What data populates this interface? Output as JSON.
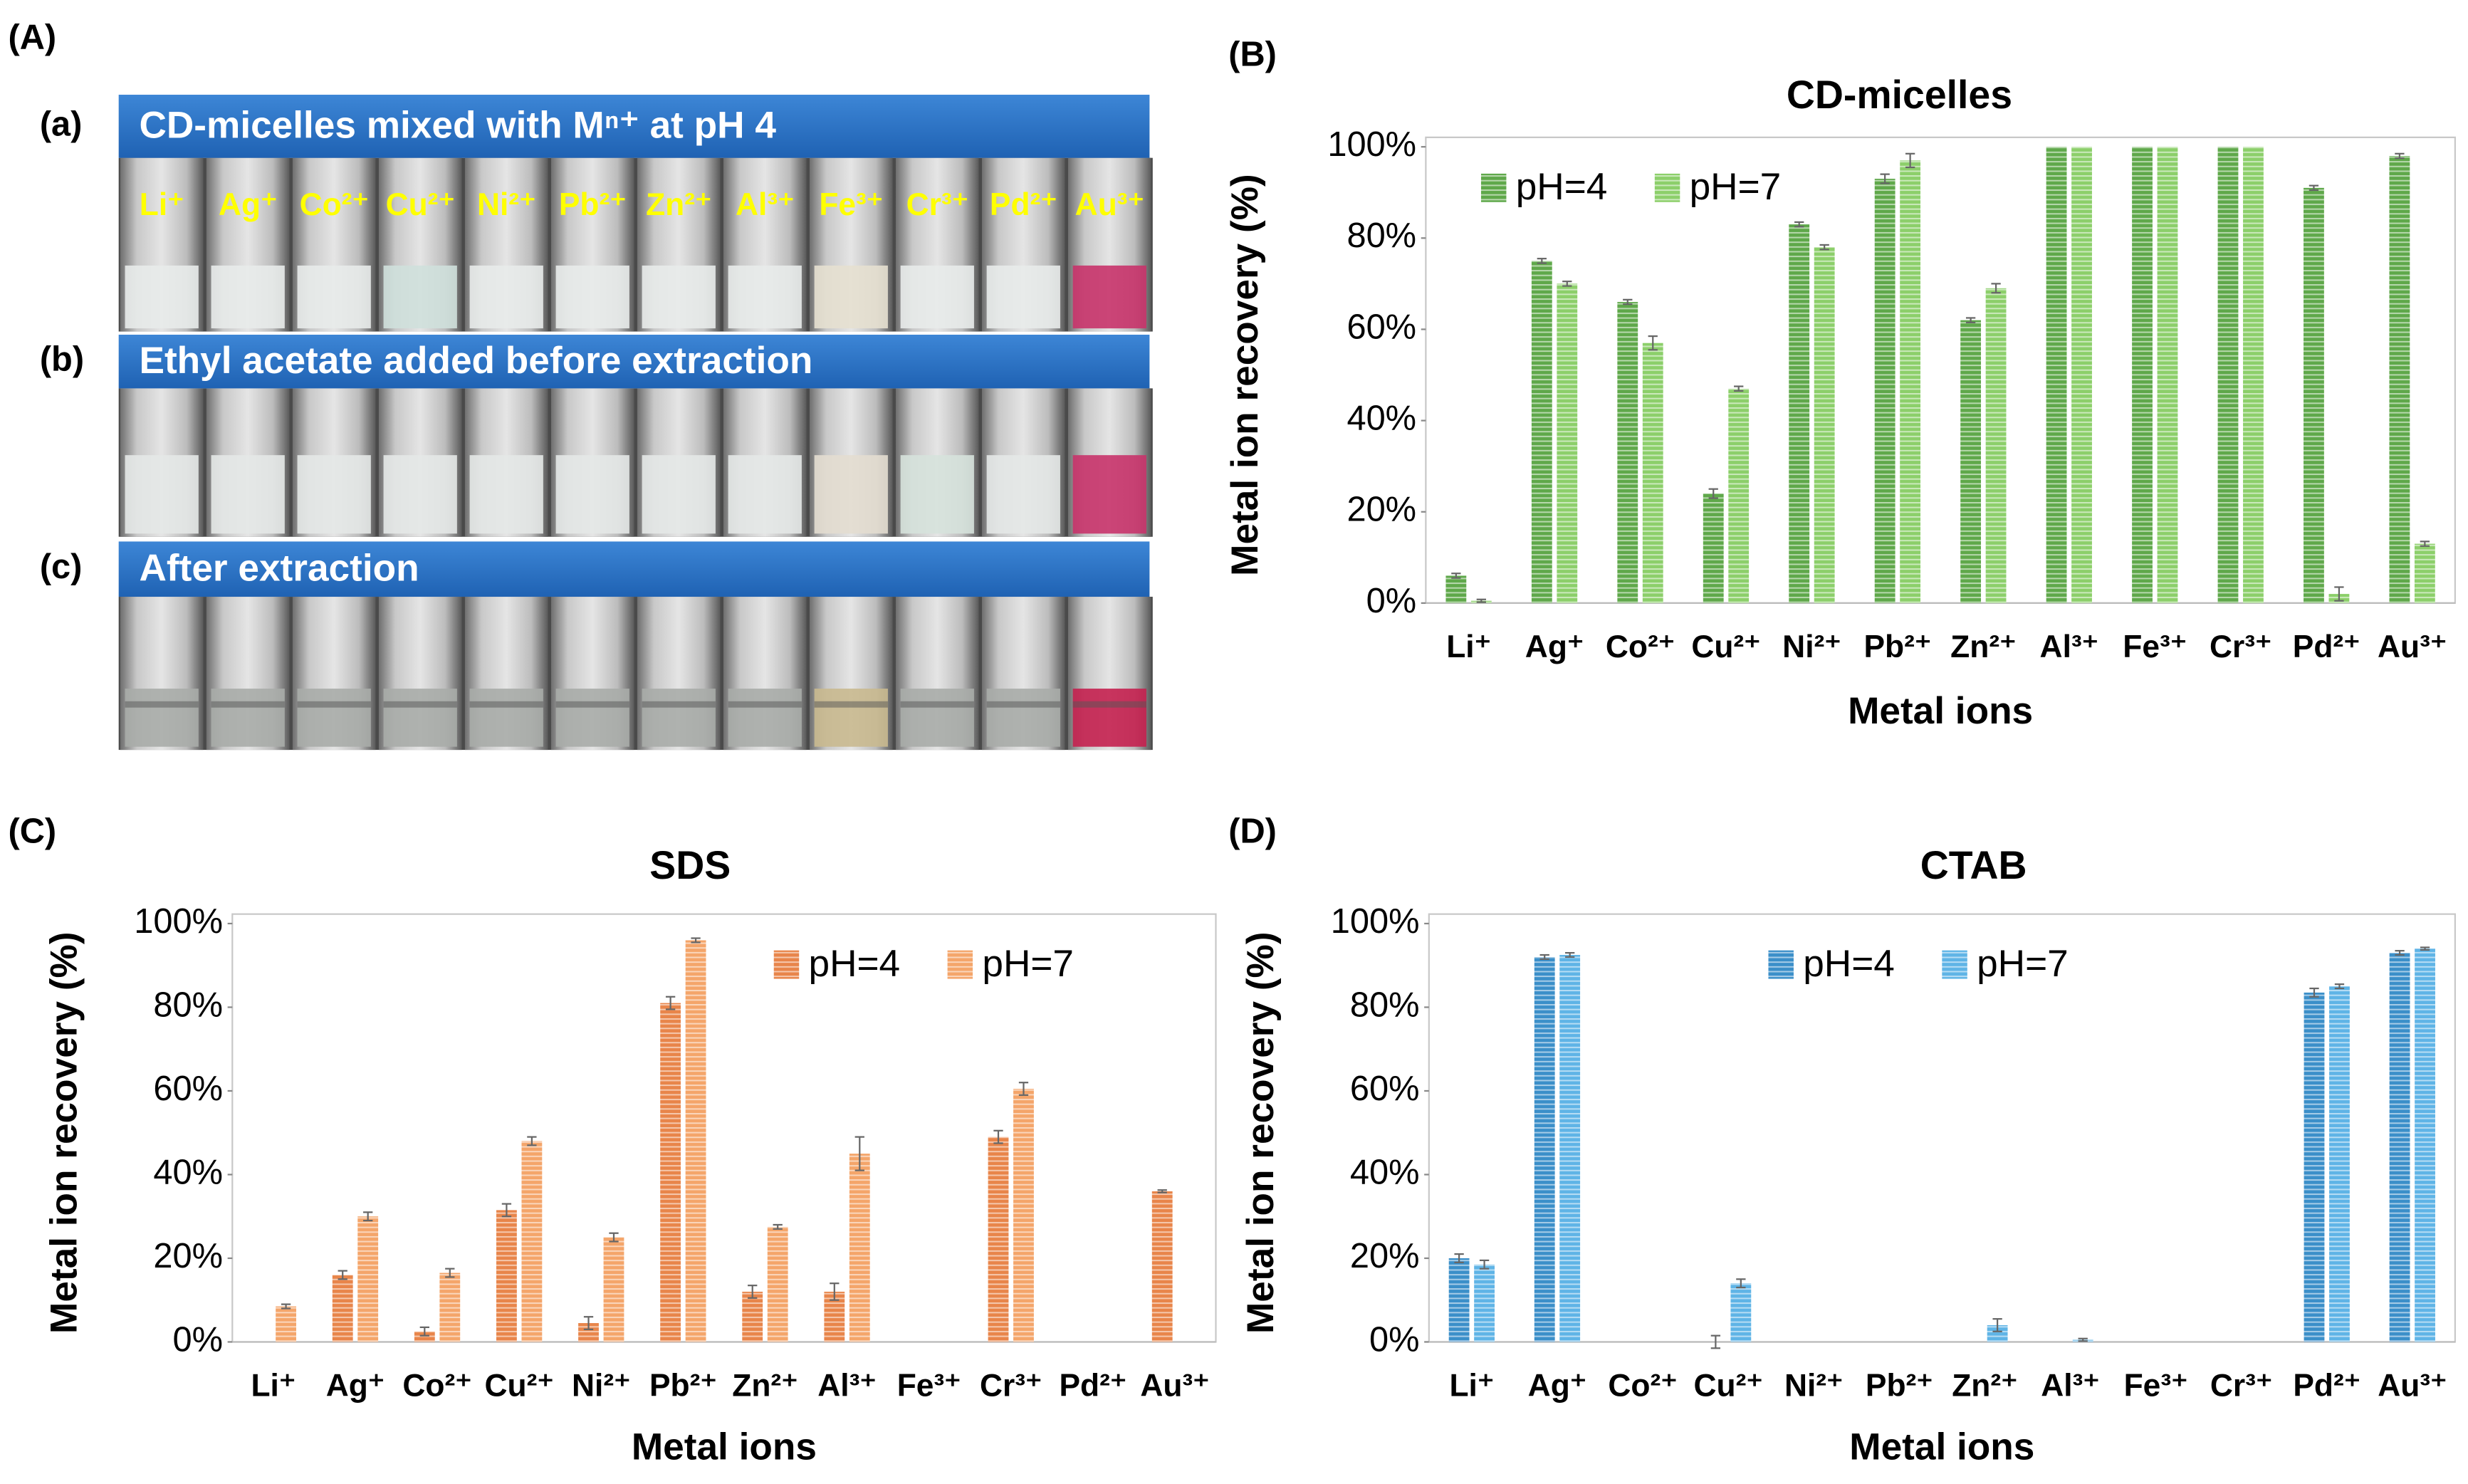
{
  "panel_labels": [
    "(A)",
    "(B)",
    "(C)",
    "(D)"
  ],
  "photo_panel": {
    "sublabels": [
      "(a)",
      "(b)",
      "(c)"
    ],
    "captions": [
      "CD-micelles mixed with Mⁿ⁺ at pH 4",
      "Ethyl acetate added before extraction",
      "After extraction"
    ],
    "ions": [
      "Li⁺",
      "Ag⁺",
      "Co²⁺",
      "Cu²⁺",
      "Ni²⁺",
      "Pb²⁺",
      "Zn²⁺",
      "Al³⁺",
      "Fe³⁺",
      "Cr³⁺",
      "Pd²⁺",
      "Au³⁺"
    ]
  },
  "chart_data": [
    {
      "type": "bar",
      "title": "CD-micelles",
      "x_label": "Metal ions",
      "y_label": "Metal ion recovery (%)",
      "categories": [
        "Li⁺",
        "Ag⁺",
        "Co²⁺",
        "Cu²⁺",
        "Ni²⁺",
        "Pb²⁺",
        "Zn²⁺",
        "Al³⁺",
        "Fe³⁺",
        "Cr³⁺",
        "Pd²⁺",
        "Au³⁺"
      ],
      "series": [
        {
          "name": "pH=4",
          "color": "#5fa84a",
          "values": [
            6,
            75,
            66,
            24,
            83,
            93,
            62,
            100,
            100,
            100,
            91,
            98
          ],
          "errors": [
            0.5,
            0.5,
            0.5,
            1,
            0.5,
            1,
            0.5,
            0,
            0,
            0,
            0.5,
            0.5
          ]
        },
        {
          "name": "pH=7",
          "color": "#8ccf6a",
          "values": [
            0.5,
            70,
            57,
            47,
            78,
            97,
            69,
            100,
            100,
            100,
            2,
            13
          ],
          "errors": [
            0.3,
            0.5,
            1.5,
            0.5,
            0.5,
            1.5,
            1,
            0,
            0,
            0,
            1.5,
            0.5
          ]
        }
      ],
      "ylim": [
        0,
        100
      ],
      "yticks": [
        {
          "value": 0,
          "label": "0%"
        },
        {
          "value": 20,
          "label": "20%"
        },
        {
          "value": 40,
          "label": "40%"
        },
        {
          "value": 60,
          "label": "60%"
        },
        {
          "value": 80,
          "label": "80%"
        },
        {
          "value": 100,
          "label": "100%"
        }
      ],
      "legend": "top-left"
    },
    {
      "type": "bar",
      "title": "SDS",
      "x_label": "Metal ions",
      "y_label": "Metal ion recovery (%)",
      "categories": [
        "Li⁺",
        "Ag⁺",
        "Co²⁺",
        "Cu²⁺",
        "Ni²⁺",
        "Pb²⁺",
        "Zn²⁺",
        "Al³⁺",
        "Fe³⁺",
        "Cr³⁺",
        "Pd²⁺",
        "Au³⁺"
      ],
      "series": [
        {
          "name": "pH=4",
          "color": "#e8854a",
          "values": [
            0,
            16,
            2.5,
            31.5,
            4.5,
            81,
            12,
            12,
            0,
            49,
            0,
            36
          ],
          "errors": [
            0,
            1,
            1,
            1.5,
            1.5,
            1.5,
            1.5,
            2,
            0,
            1.5,
            0,
            0.3
          ]
        },
        {
          "name": "pH=7",
          "color": "#f4a56a",
          "values": [
            8.5,
            30,
            16.5,
            48,
            25,
            96,
            27.5,
            45,
            0,
            60.5,
            0,
            0
          ],
          "errors": [
            0.5,
            1,
            1,
            1,
            1,
            0.5,
            0.5,
            4,
            0,
            1.5,
            0,
            0
          ]
        }
      ],
      "ylim": [
        0,
        100
      ],
      "yticks": [
        {
          "value": 0,
          "label": "0%"
        },
        {
          "value": 20,
          "label": "20%"
        },
        {
          "value": 40,
          "label": "40%"
        },
        {
          "value": 60,
          "label": "60%"
        },
        {
          "value": 80,
          "label": "80%"
        },
        {
          "value": 100,
          "label": "100%"
        }
      ],
      "legend": "top-right"
    },
    {
      "type": "bar",
      "title": "CTAB",
      "x_label": "Metal ions",
      "y_label": "Metal ion recovery (%)",
      "categories": [
        "Li⁺",
        "Ag⁺",
        "Co²⁺",
        "Cu²⁺",
        "Ni²⁺",
        "Pb²⁺",
        "Zn²⁺",
        "Al³⁺",
        "Fe³⁺",
        "Cr³⁺",
        "Pd²⁺",
        "Au³⁺"
      ],
      "series": [
        {
          "name": "pH=4",
          "color": "#3b8fc9",
          "values": [
            20,
            92,
            0,
            0,
            0,
            0,
            0,
            0,
            0,
            0,
            83.5,
            93
          ],
          "errors": [
            1,
            0.5,
            0,
            1.5,
            0,
            0,
            0,
            0,
            0,
            0,
            1,
            0.5
          ]
        },
        {
          "name": "pH=7",
          "color": "#5fb4e6",
          "values": [
            18.5,
            92.5,
            0,
            14,
            0,
            0,
            4,
            0.5,
            0,
            0,
            85,
            94
          ],
          "errors": [
            1,
            0.5,
            0,
            1,
            0,
            0,
            1.5,
            0.3,
            0,
            0,
            0.5,
            0.3
          ]
        }
      ],
      "ylim": [
        0,
        100
      ],
      "yticks": [
        {
          "value": 0,
          "label": "0%"
        },
        {
          "value": 20,
          "label": "20%"
        },
        {
          "value": 40,
          "label": "40%"
        },
        {
          "value": 60,
          "label": "60%"
        },
        {
          "value": 80,
          "label": "80%"
        },
        {
          "value": 100,
          "label": "100%"
        }
      ],
      "legend": "top"
    }
  ]
}
